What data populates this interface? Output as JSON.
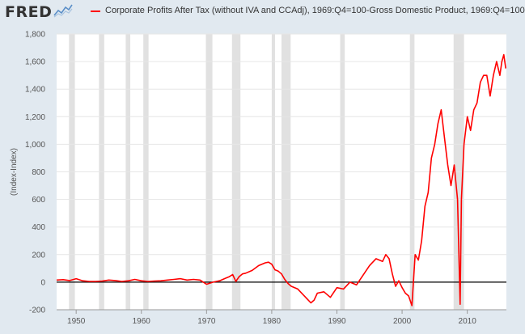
{
  "header": {
    "logo": "FRED",
    "legend_label": "Corporate Profits After Tax (without IVA and CCAdj), 1969:Q4=100-Gross Domestic Product, 1969:Q4=100"
  },
  "chart_data": {
    "type": "line",
    "ylabel": "(Index-Index)",
    "xlim": [
      1947,
      2016
    ],
    "ylim": [
      -200,
      1800
    ],
    "yticks": [
      -200,
      0,
      200,
      400,
      600,
      800,
      1000,
      1200,
      1400,
      1600,
      1800
    ],
    "ytick_labels": [
      "-200",
      "0",
      "200",
      "400",
      "600",
      "800",
      "1,000",
      "1,200",
      "1,400",
      "1,600",
      "1,800"
    ],
    "xticks": [
      1950,
      1960,
      1970,
      1980,
      1990,
      2000,
      2010
    ],
    "xtick_labels": [
      "1950",
      "1960",
      "1970",
      "1980",
      "1990",
      "2000",
      "2010"
    ],
    "grid": true,
    "zero_line": true,
    "line_color": "#ff0000",
    "recessions": [
      [
        1948.9,
        1949.8
      ],
      [
        1953.5,
        1954.3
      ],
      [
        1957.6,
        1958.3
      ],
      [
        1960.3,
        1961.1
      ],
      [
        1969.9,
        1970.9
      ],
      [
        1973.9,
        1975.2
      ],
      [
        1980.0,
        1980.5
      ],
      [
        1981.5,
        1982.9
      ],
      [
        1990.5,
        1991.2
      ],
      [
        2001.2,
        2001.9
      ],
      [
        2007.9,
        2009.5
      ]
    ],
    "series": [
      {
        "x": [
          1947,
          1948,
          1949,
          1950,
          1951,
          1952,
          1953,
          1954,
          1955,
          1956,
          1957,
          1958,
          1959,
          1960,
          1961,
          1962,
          1963,
          1964,
          1965,
          1966,
          1967,
          1968,
          1969,
          1970,
          1971,
          1972,
          1973,
          1973.5,
          1974,
          1974.5,
          1975,
          1975.5,
          1976,
          1977,
          1978,
          1979,
          1979.5,
          1980,
          1980.5,
          1981,
          1981.5,
          1982,
          1982.5,
          1983,
          1984,
          1985,
          1986,
          1986.5,
          1987,
          1988,
          1989,
          1990,
          1991,
          1992,
          1993,
          1994,
          1995,
          1996,
          1997,
          1997.5,
          1998,
          1998.5,
          1999,
          1999.5,
          2000,
          2000.5,
          2001,
          2001.5,
          2002,
          2002.5,
          2003,
          2003.5,
          2004,
          2004.5,
          2005,
          2005.5,
          2006,
          2006.5,
          2007,
          2007.5,
          2008,
          2008.5,
          2008.9,
          2009.1,
          2009.5,
          2010,
          2010.5,
          2011,
          2011.5,
          2012,
          2012.5,
          2013,
          2013.5,
          2014,
          2014.5,
          2015,
          2015.3,
          2015.6,
          2015.9
        ],
        "y": [
          15,
          18,
          12,
          25,
          10,
          5,
          5,
          8,
          15,
          12,
          5,
          10,
          20,
          10,
          5,
          8,
          10,
          15,
          20,
          25,
          15,
          20,
          15,
          -15,
          0,
          10,
          30,
          40,
          55,
          5,
          40,
          60,
          65,
          85,
          120,
          140,
          145,
          130,
          90,
          80,
          60,
          20,
          -10,
          -30,
          -50,
          -100,
          -150,
          -130,
          -80,
          -70,
          -110,
          -40,
          -50,
          0,
          -20,
          50,
          120,
          170,
          150,
          200,
          170,
          60,
          -30,
          10,
          -40,
          -80,
          -100,
          -170,
          200,
          160,
          300,
          550,
          650,
          900,
          1000,
          1150,
          1250,
          1050,
          850,
          700,
          850,
          600,
          -160,
          600,
          1000,
          1200,
          1100,
          1250,
          1300,
          1450,
          1500,
          1500,
          1350,
          1500,
          1600,
          1500,
          1600,
          1650,
          1550
        ]
      }
    ]
  }
}
